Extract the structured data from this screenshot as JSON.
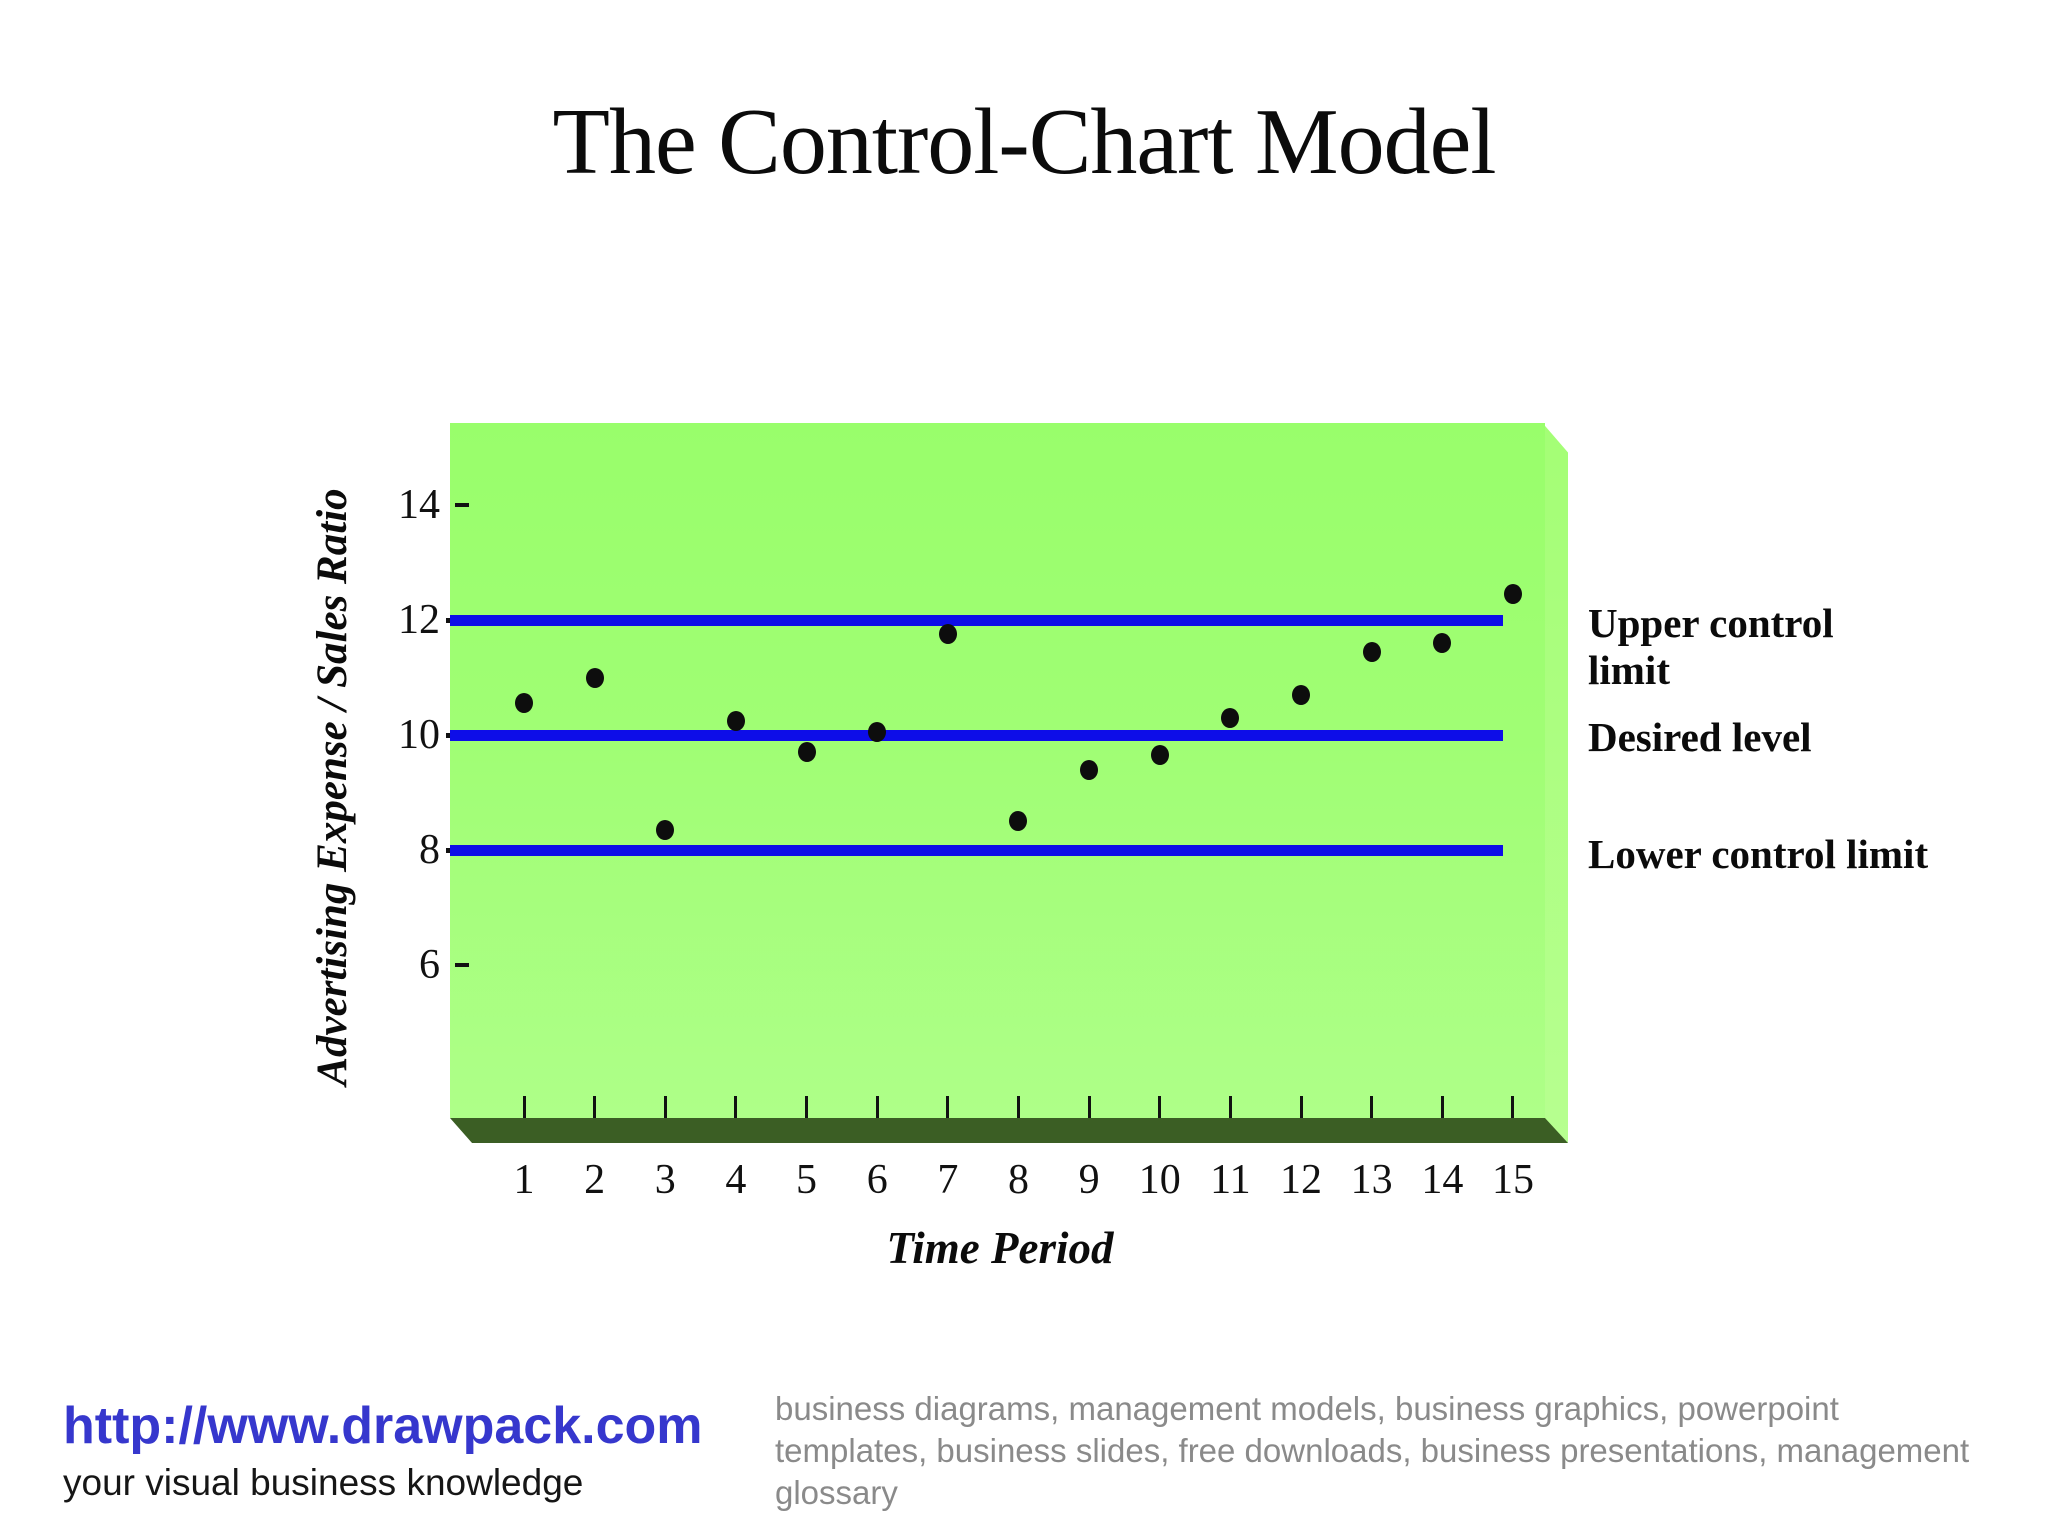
{
  "title": "The Control-Chart Model",
  "chart_data": {
    "type": "scatter",
    "x": [
      1,
      2,
      3,
      4,
      5,
      6,
      7,
      8,
      9,
      10,
      11,
      12,
      13,
      14,
      15
    ],
    "values": [
      10.55,
      11.0,
      8.35,
      10.25,
      9.7,
      10.05,
      11.75,
      8.5,
      9.4,
      9.65,
      10.3,
      10.7,
      11.45,
      11.6,
      12.45
    ],
    "xlabel": "Time Period",
    "ylabel": "Advertising Expense / Sales Ratio",
    "x_ticks": [
      1,
      2,
      3,
      4,
      5,
      6,
      7,
      8,
      9,
      10,
      11,
      12,
      13,
      14,
      15
    ],
    "y_ticks": [
      14,
      12,
      10,
      8,
      6
    ],
    "ylim": [
      4.5,
      15.2
    ],
    "xlim": [
      0,
      16
    ],
    "grid": "off",
    "legend": "none",
    "reference_lines": [
      {
        "value": 12,
        "label": "Upper control limit"
      },
      {
        "value": 10,
        "label": "Desired level"
      },
      {
        "value": 8,
        "label": "Lower control limit"
      }
    ],
    "point_color": "#0d0d0d",
    "reference_line_color": "#0d0de8",
    "plot_bg_top": "#99fe6b",
    "plot_bg_bottom": "#aeff88",
    "bevel_color": "#3b5e24"
  },
  "footer": {
    "url": "http://www.drawpack.com",
    "tagline": "your visual business knowledge",
    "keywords_lines": [
      "business diagrams, management models, business graphics, powerpoint",
      "templates, business slides, free downloads, business presentations, management",
      "glossary"
    ]
  }
}
